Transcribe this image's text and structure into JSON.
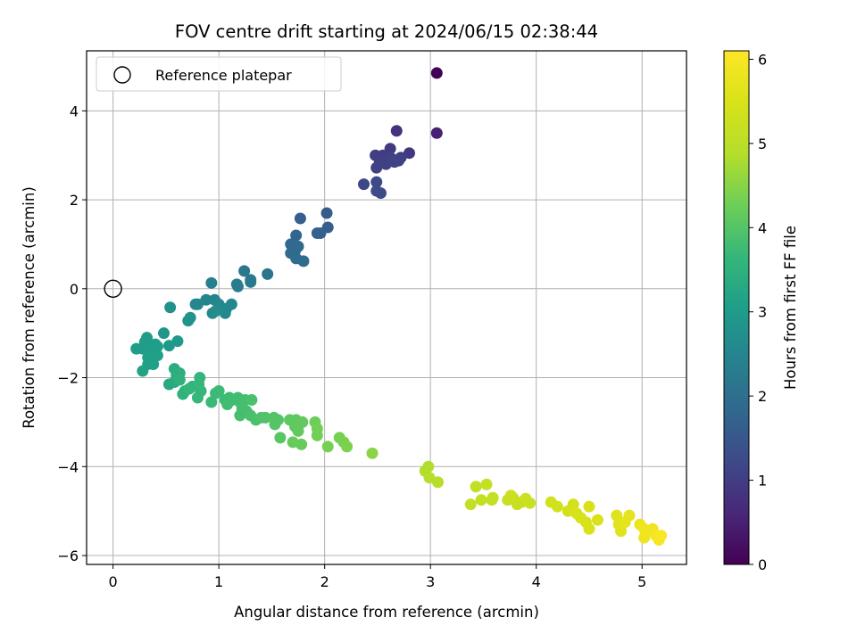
{
  "chart_data": {
    "type": "scatter",
    "title": "FOV centre drift starting at 2024/06/15 02:38:44",
    "xlabel": "Angular distance from reference (arcmin)",
    "ylabel": "Rotation from reference (arcmin)",
    "xlim": [
      -0.25,
      5.42
    ],
    "ylim": [
      -6.2,
      5.35
    ],
    "xticks": [
      "0",
      "1",
      "2",
      "3",
      "4",
      "5"
    ],
    "yticks": [
      "−6",
      "−4",
      "−2",
      "0",
      "2",
      "4"
    ],
    "grid": true,
    "legend": {
      "placement": "top-left",
      "entries": [
        "Reference platepar"
      ]
    },
    "reference_point": {
      "x": 0,
      "y": 0
    },
    "colorbar": {
      "label": "Hours from first FF file",
      "range": [
        0,
        6.1
      ],
      "ticks": [
        "0",
        "1",
        "2",
        "3",
        "4",
        "5",
        "6"
      ],
      "colormap": "viridis"
    },
    "series": [
      {
        "points": [
          [
            3.06,
            4.85,
            0.0
          ],
          [
            3.06,
            3.5,
            0.5
          ],
          [
            2.68,
            3.55,
            0.8
          ],
          [
            2.8,
            3.05,
            0.9
          ],
          [
            2.62,
            3.15,
            0.95
          ],
          [
            2.72,
            2.95,
            1.0
          ],
          [
            2.55,
            3.0,
            1.0
          ],
          [
            2.48,
            3.0,
            1.02
          ],
          [
            2.6,
            2.9,
            1.05
          ],
          [
            2.52,
            2.85,
            1.05
          ],
          [
            2.7,
            2.88,
            1.06
          ],
          [
            2.49,
            2.72,
            1.08
          ],
          [
            2.58,
            2.8,
            1.08
          ],
          [
            2.63,
            2.93,
            1.08
          ],
          [
            2.66,
            2.85,
            1.1
          ],
          [
            2.37,
            2.35,
            1.2
          ],
          [
            2.49,
            2.4,
            1.22
          ],
          [
            2.49,
            2.2,
            1.25
          ],
          [
            2.53,
            2.15,
            1.25
          ],
          [
            2.02,
            1.7,
            1.6
          ],
          [
            1.77,
            1.58,
            1.65
          ],
          [
            2.03,
            1.38,
            1.65
          ],
          [
            1.96,
            1.25,
            1.7
          ],
          [
            1.93,
            1.25,
            1.7
          ],
          [
            1.73,
            1.2,
            1.8
          ],
          [
            1.68,
            1.0,
            1.85
          ],
          [
            1.7,
            0.9,
            1.88
          ],
          [
            1.75,
            0.95,
            1.88
          ],
          [
            1.72,
            0.85,
            1.9
          ],
          [
            1.68,
            0.8,
            1.9
          ],
          [
            1.73,
            0.68,
            1.95
          ],
          [
            1.8,
            0.62,
            1.95
          ],
          [
            1.46,
            0.33,
            2.1
          ],
          [
            1.24,
            0.4,
            2.2
          ],
          [
            1.3,
            0.15,
            2.25
          ],
          [
            1.3,
            0.2,
            2.25
          ],
          [
            1.18,
            0.05,
            2.3
          ],
          [
            1.17,
            0.1,
            2.3
          ],
          [
            0.93,
            0.13,
            2.4
          ],
          [
            0.96,
            -0.25,
            2.5
          ],
          [
            0.88,
            -0.25,
            2.5
          ],
          [
            0.8,
            -0.35,
            2.55
          ],
          [
            0.78,
            -0.35,
            2.55
          ],
          [
            1.0,
            -0.35,
            2.55
          ],
          [
            1.12,
            -0.35,
            2.55
          ],
          [
            1.0,
            -0.45,
            2.6
          ],
          [
            1.07,
            -0.45,
            2.6
          ],
          [
            0.94,
            -0.55,
            2.6
          ],
          [
            1.06,
            -0.55,
            2.6
          ],
          [
            0.97,
            -0.5,
            2.65
          ],
          [
            0.54,
            -0.42,
            2.75
          ],
          [
            0.73,
            -0.65,
            2.8
          ],
          [
            0.71,
            -0.72,
            2.8
          ],
          [
            0.48,
            -1.0,
            2.9
          ],
          [
            0.61,
            -1.18,
            2.95
          ],
          [
            0.53,
            -1.28,
            2.95
          ],
          [
            0.22,
            -1.35,
            3.0
          ],
          [
            0.28,
            -1.35,
            3.0
          ],
          [
            0.32,
            -1.1,
            3.0
          ],
          [
            0.3,
            -1.2,
            3.0
          ],
          [
            0.4,
            -1.25,
            3.05
          ],
          [
            0.35,
            -1.3,
            3.05
          ],
          [
            0.42,
            -1.3,
            3.05
          ],
          [
            0.38,
            -1.4,
            3.05
          ],
          [
            0.33,
            -1.55,
            3.1
          ],
          [
            0.42,
            -1.5,
            3.1
          ],
          [
            0.38,
            -1.7,
            3.1
          ],
          [
            0.33,
            -1.7,
            3.1
          ],
          [
            0.28,
            -1.85,
            3.15
          ],
          [
            0.53,
            -2.15,
            3.3
          ],
          [
            0.58,
            -2.1,
            3.35
          ],
          [
            0.58,
            -1.8,
            3.4
          ],
          [
            0.6,
            -1.95,
            3.45
          ],
          [
            0.63,
            -1.9,
            3.45
          ],
          [
            0.63,
            -2.05,
            3.5
          ],
          [
            0.75,
            -2.2,
            3.5
          ],
          [
            0.68,
            -2.3,
            3.55
          ],
          [
            0.66,
            -2.37,
            3.55
          ],
          [
            0.72,
            -2.25,
            3.6
          ],
          [
            0.82,
            -2.0,
            3.6
          ],
          [
            0.81,
            -2.15,
            3.65
          ],
          [
            0.83,
            -2.3,
            3.65
          ],
          [
            0.8,
            -2.45,
            3.65
          ],
          [
            0.97,
            -2.35,
            3.7
          ],
          [
            0.93,
            -2.55,
            3.7
          ],
          [
            1.0,
            -2.3,
            3.75
          ],
          [
            1.06,
            -2.5,
            3.75
          ],
          [
            1.1,
            -2.45,
            3.75
          ],
          [
            1.08,
            -2.6,
            3.8
          ],
          [
            1.13,
            -2.5,
            3.8
          ],
          [
            1.18,
            -2.45,
            3.8
          ],
          [
            1.2,
            -2.55,
            3.8
          ],
          [
            1.25,
            -2.5,
            3.85
          ],
          [
            1.2,
            -2.85,
            3.85
          ],
          [
            1.22,
            -2.7,
            3.85
          ],
          [
            1.26,
            -2.75,
            3.85
          ],
          [
            1.31,
            -2.5,
            3.9
          ],
          [
            1.3,
            -2.85,
            3.9
          ],
          [
            1.35,
            -2.95,
            3.9
          ],
          [
            1.4,
            -2.9,
            3.95
          ],
          [
            1.44,
            -2.9,
            3.95
          ],
          [
            1.52,
            -2.9,
            4.0
          ],
          [
            1.56,
            -2.95,
            4.0
          ],
          [
            1.53,
            -3.05,
            4.0
          ],
          [
            1.58,
            -3.35,
            4.05
          ],
          [
            1.67,
            -2.95,
            4.1
          ],
          [
            1.73,
            -2.95,
            4.1
          ],
          [
            1.72,
            -3.1,
            4.1
          ],
          [
            1.76,
            -3.05,
            4.15
          ],
          [
            1.79,
            -3.0,
            4.15
          ],
          [
            1.75,
            -3.2,
            4.15
          ],
          [
            1.7,
            -3.45,
            4.2
          ],
          [
            1.78,
            -3.5,
            4.2
          ],
          [
            1.91,
            -3.0,
            4.25
          ],
          [
            1.93,
            -3.15,
            4.3
          ],
          [
            1.93,
            -3.3,
            4.3
          ],
          [
            2.03,
            -3.55,
            4.35
          ],
          [
            2.14,
            -3.35,
            4.35
          ],
          [
            2.18,
            -3.45,
            4.35
          ],
          [
            2.21,
            -3.55,
            4.4
          ],
          [
            2.45,
            -3.7,
            4.5
          ],
          [
            2.98,
            -4.0,
            4.85
          ],
          [
            2.95,
            -4.1,
            4.85
          ],
          [
            2.99,
            -4.25,
            4.9
          ],
          [
            3.07,
            -4.35,
            4.9
          ],
          [
            3.38,
            -4.85,
            5.1
          ],
          [
            3.43,
            -4.45,
            5.1
          ],
          [
            3.48,
            -4.75,
            5.15
          ],
          [
            3.53,
            -4.4,
            5.15
          ],
          [
            3.59,
            -4.7,
            5.15
          ],
          [
            3.58,
            -4.75,
            5.15
          ],
          [
            3.73,
            -4.75,
            5.2
          ],
          [
            3.78,
            -4.7,
            5.2
          ],
          [
            3.82,
            -4.85,
            5.2
          ],
          [
            3.86,
            -4.8,
            5.2
          ],
          [
            3.9,
            -4.72,
            5.25
          ],
          [
            3.94,
            -4.82,
            5.25
          ],
          [
            3.76,
            -4.65,
            5.25
          ],
          [
            4.14,
            -4.8,
            5.35
          ],
          [
            4.2,
            -4.9,
            5.35
          ],
          [
            4.3,
            -5.0,
            5.4
          ],
          [
            4.35,
            -4.85,
            5.4
          ],
          [
            4.38,
            -5.05,
            5.45
          ],
          [
            4.42,
            -5.15,
            5.45
          ],
          [
            4.47,
            -5.25,
            5.45
          ],
          [
            4.5,
            -5.4,
            5.5
          ],
          [
            4.5,
            -4.9,
            5.5
          ],
          [
            4.58,
            -5.2,
            5.5
          ],
          [
            4.76,
            -5.1,
            5.6
          ],
          [
            4.78,
            -5.3,
            5.65
          ],
          [
            4.8,
            -5.45,
            5.65
          ],
          [
            4.84,
            -5.25,
            5.7
          ],
          [
            4.88,
            -5.1,
            5.7
          ],
          [
            4.98,
            -5.3,
            5.8
          ],
          [
            5.02,
            -5.4,
            5.85
          ],
          [
            5.02,
            -5.6,
            5.85
          ],
          [
            5.06,
            -5.45,
            5.9
          ],
          [
            5.1,
            -5.4,
            5.9
          ],
          [
            5.13,
            -5.55,
            5.95
          ],
          [
            5.16,
            -5.65,
            6.0
          ],
          [
            5.18,
            -5.55,
            6.05
          ]
        ]
      }
    ]
  }
}
